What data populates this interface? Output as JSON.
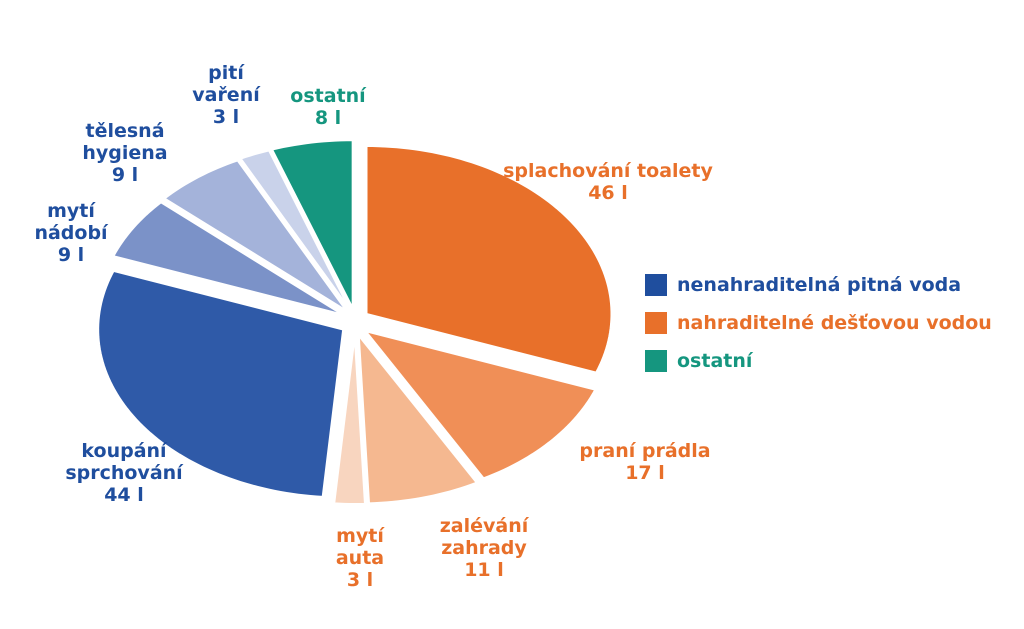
{
  "chart_data": {
    "type": "pie",
    "categories": [
      "splachování toalety",
      "praní prádla",
      "zalévání zahrady",
      "mytí auta",
      "koupání sprchování",
      "mytí nádobí",
      "tělesná hygiena",
      "pití vaření",
      "ostatní"
    ],
    "values": [
      46,
      17,
      11,
      3,
      44,
      9,
      9,
      3,
      8
    ],
    "value_labels": [
      "46 l",
      "17 l",
      "11 l",
      "3 l",
      "44 l",
      "9 l",
      "9 l",
      "3 l",
      "8 l"
    ],
    "colors": [
      "#e8702a",
      "#f08f57",
      "#f5b890",
      "#f8d5bf",
      "#2f5aa8",
      "#7b92c8",
      "#a4b3da",
      "#c9d2ea",
      "#15967f"
    ],
    "label_colors": [
      "#e8702a",
      "#e8702a",
      "#e8702a",
      "#e8702a",
      "#1f4e9e",
      "#1f4e9e",
      "#1f4e9e",
      "#1f4e9e",
      "#15967f"
    ],
    "legend": [
      {
        "name": "nenahraditelná pitná voda",
        "color": "#1f4e9e"
      },
      {
        "name": "nahraditelné dešťovou vodou",
        "color": "#e8702a"
      },
      {
        "name": "ostatní",
        "color": "#15967f"
      }
    ],
    "legend_position": "right"
  }
}
